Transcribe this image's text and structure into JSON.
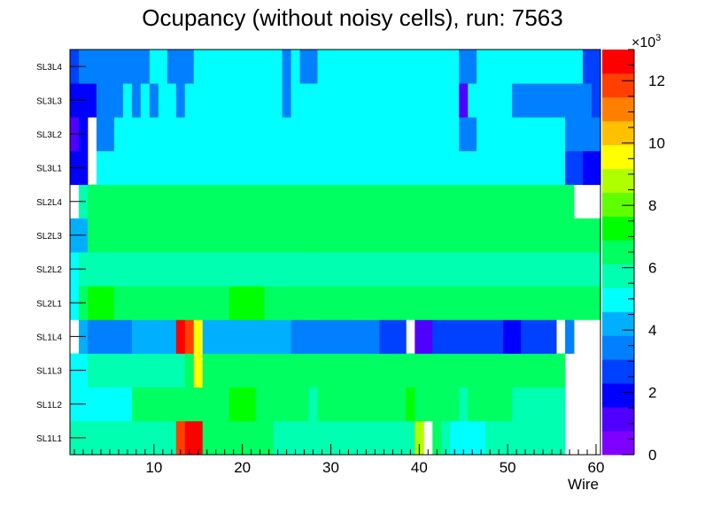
{
  "chart_data": {
    "type": "heatmap",
    "title": "Ocupancy (without noisy cells), run: 7563",
    "xlabel": "Wire",
    "ylabel": "",
    "xlim": [
      0.5,
      60.5
    ],
    "x_ticks": [
      10,
      20,
      30,
      40,
      50,
      60
    ],
    "rows": [
      "SL1L1",
      "SL1L2",
      "SL1L3",
      "SL1L4",
      "SL2L1",
      "SL2L2",
      "SL2L3",
      "SL2L4",
      "SL3L1",
      "SL3L2",
      "SL3L3",
      "SL3L4"
    ],
    "color_scale": {
      "min": 0,
      "max": 13000,
      "exponent_label": "×10",
      "exponent_power": "3",
      "ticks": [
        0,
        2,
        4,
        6,
        8,
        10,
        12
      ],
      "stops": [
        "#7f00ff",
        "#5000ff",
        "#0000ff",
        "#0040ff",
        "#0080ff",
        "#00b0ff",
        "#00ffff",
        "#00ffb0",
        "#00ff60",
        "#00ff00",
        "#60ff00",
        "#b0ff00",
        "#ffff00",
        "#ffc000",
        "#ff8000",
        "#ff4000",
        "#ff0000"
      ]
    },
    "values": [
      [
        5.8,
        5.8,
        6.0,
        6.0,
        6.0,
        6.0,
        6.0,
        6.0,
        6.0,
        6.0,
        6.0,
        6.0,
        11.5,
        13.0,
        12.5,
        6.5,
        6.5,
        6.5,
        6.5,
        6.5,
        6.5,
        6.5,
        6.5,
        5.5,
        5.5,
        5.5,
        5.5,
        5.5,
        6.0,
        6.0,
        6.0,
        5.5,
        5.5,
        6.0,
        6.0,
        6.0,
        6.0,
        6.0,
        6.0,
        8.5,
        null,
        6.5,
        5.8,
        4.8,
        5.2,
        5.2,
        5.2,
        6.0,
        6.0,
        6.0,
        6.0,
        6.0,
        6.0,
        5.5,
        5.5,
        5.5,
        null,
        null,
        null,
        null
      ],
      [
        5.2,
        5.2,
        5.2,
        5.2,
        5.2,
        5.2,
        5.2,
        6.2,
        6.2,
        6.2,
        6.2,
        6.2,
        6.2,
        6.8,
        6.8,
        6.2,
        6.2,
        6.2,
        7.0,
        7.0,
        7.0,
        6.2,
        6.2,
        6.2,
        6.2,
        6.2,
        6.2,
        5.8,
        6.2,
        6.2,
        6.2,
        6.2,
        6.2,
        6.2,
        6.2,
        6.2,
        6.2,
        6.2,
        7.5,
        6.2,
        6.2,
        6.2,
        6.2,
        6.2,
        5.8,
        6.2,
        6.2,
        6.2,
        6.8,
        6.8,
        5.8,
        5.8,
        5.8,
        5.8,
        5.8,
        5.8,
        null,
        null,
        null,
        null
      ],
      [
        5.2,
        5.2,
        5.6,
        5.6,
        5.6,
        5.6,
        5.6,
        5.6,
        5.6,
        5.6,
        5.6,
        5.6,
        5.6,
        6.4,
        9.5,
        6.4,
        6.4,
        6.4,
        6.4,
        6.4,
        6.4,
        6.4,
        6.4,
        6.4,
        6.4,
        6.4,
        6.4,
        6.4,
        6.4,
        6.4,
        6.8,
        6.8,
        6.8,
        6.8,
        6.8,
        6.8,
        6.4,
        6.4,
        6.4,
        6.4,
        6.4,
        6.4,
        6.4,
        6.4,
        6.4,
        6.4,
        6.4,
        6.4,
        6.4,
        6.8,
        6.8,
        6.4,
        6.4,
        6.4,
        6.4,
        6.4,
        null,
        null,
        null,
        null
      ],
      [
        null,
        4.5,
        3.8,
        3.8,
        3.8,
        3.8,
        3.8,
        4.5,
        4.5,
        4.5,
        4.5,
        4.5,
        13.0,
        12.0,
        9.8,
        4.5,
        4.5,
        4.5,
        4.5,
        4.5,
        4.5,
        4.5,
        4.5,
        4.0,
        4.5,
        3.8,
        3.8,
        3.8,
        3.8,
        3.8,
        3.8,
        3.8,
        3.8,
        3.8,
        3.8,
        3.0,
        3.0,
        3.0,
        null,
        0.8,
        0.8,
        3.0,
        3.0,
        3.0,
        3.0,
        3.0,
        3.0,
        3.0,
        3.0,
        2.0,
        2.0,
        3.0,
        3.0,
        3.0,
        3.0,
        null,
        3.8,
        null,
        null,
        null
      ],
      [
        4.8,
        6.2,
        7.5,
        7.5,
        7.5,
        6.8,
        6.8,
        6.8,
        6.8,
        6.8,
        6.8,
        6.8,
        6.8,
        6.8,
        6.8,
        6.8,
        6.8,
        6.8,
        7.5,
        7.5,
        7.5,
        7.5,
        6.8,
        6.8,
        6.8,
        6.8,
        6.8,
        6.8,
        6.8,
        6.8,
        6.8,
        6.8,
        6.8,
        6.8,
        6.8,
        6.8,
        6.8,
        6.8,
        6.8,
        6.8,
        6.8,
        6.8,
        6.8,
        6.8,
        6.8,
        6.8,
        6.8,
        6.8,
        6.8,
        6.8,
        6.8,
        6.8,
        6.8,
        6.8,
        6.8,
        6.8,
        6.8,
        6.8,
        6.8,
        6.8
      ],
      [
        4.6,
        5.8,
        5.8,
        5.8,
        5.8,
        5.8,
        5.8,
        5.8,
        5.8,
        5.8,
        5.8,
        5.8,
        5.8,
        5.8,
        5.8,
        5.8,
        5.8,
        5.8,
        5.8,
        5.8,
        5.8,
        5.8,
        5.8,
        5.8,
        5.8,
        5.8,
        5.8,
        5.8,
        5.8,
        5.8,
        5.8,
        5.8,
        5.8,
        5.8,
        5.8,
        5.8,
        5.8,
        5.8,
        5.8,
        5.8,
        5.8,
        5.8,
        5.8,
        5.8,
        5.8,
        5.8,
        5.8,
        5.8,
        5.8,
        5.8,
        5.8,
        5.8,
        5.8,
        5.8,
        5.8,
        5.8,
        5.8,
        5.8,
        5.8,
        5.8
      ],
      [
        4.0,
        4.0,
        6.4,
        6.4,
        6.4,
        6.4,
        6.4,
        6.4,
        6.4,
        6.4,
        6.4,
        6.4,
        6.4,
        6.4,
        6.4,
        6.4,
        6.4,
        6.4,
        6.4,
        6.4,
        6.4,
        6.4,
        6.4,
        6.4,
        6.4,
        6.4,
        6.4,
        6.4,
        6.4,
        6.4,
        6.4,
        6.4,
        6.4,
        6.4,
        6.4,
        6.4,
        6.4,
        6.4,
        6.4,
        6.4,
        6.4,
        6.4,
        6.4,
        6.4,
        6.4,
        6.4,
        6.4,
        6.4,
        6.4,
        6.4,
        6.4,
        6.4,
        6.4,
        6.4,
        6.4,
        6.4,
        6.4,
        6.4,
        6.4,
        6.4
      ],
      [
        null,
        5.8,
        6.5,
        6.5,
        6.5,
        6.5,
        6.5,
        6.5,
        6.5,
        6.5,
        6.5,
        6.5,
        6.5,
        6.5,
        6.5,
        6.5,
        6.5,
        6.5,
        6.5,
        6.5,
        6.5,
        6.5,
        6.5,
        6.5,
        6.5,
        6.5,
        6.5,
        6.5,
        6.5,
        6.5,
        6.5,
        6.5,
        6.5,
        6.5,
        6.5,
        6.5,
        6.5,
        6.5,
        6.5,
        6.5,
        6.5,
        6.5,
        6.5,
        6.5,
        6.5,
        6.5,
        6.5,
        6.5,
        6.5,
        6.5,
        6.5,
        6.5,
        6.5,
        6.5,
        6.5,
        6.5,
        6.5,
        null,
        null,
        null
      ],
      [
        1.8,
        1.8,
        null,
        4.7,
        4.7,
        4.7,
        4.7,
        4.7,
        4.7,
        4.7,
        4.7,
        4.7,
        4.7,
        4.7,
        4.7,
        4.7,
        4.7,
        4.7,
        5.2,
        5.2,
        5.2,
        4.7,
        4.7,
        4.7,
        4.7,
        4.7,
        4.7,
        4.7,
        4.7,
        5.2,
        4.7,
        4.7,
        4.7,
        4.7,
        4.7,
        4.7,
        4.7,
        4.7,
        4.7,
        4.7,
        4.7,
        4.7,
        4.7,
        4.7,
        4.7,
        4.7,
        4.7,
        4.7,
        4.7,
        4.7,
        4.7,
        4.7,
        4.7,
        4.7,
        4.7,
        4.7,
        3.0,
        3.0,
        2.0,
        2.0
      ],
      [
        1.2,
        2.0,
        null,
        3.7,
        3.7,
        4.7,
        4.7,
        4.7,
        4.7,
        4.7,
        4.7,
        4.7,
        4.7,
        4.7,
        4.7,
        4.7,
        4.7,
        4.7,
        4.7,
        4.7,
        4.7,
        4.7,
        4.7,
        4.7,
        4.7,
        4.7,
        4.7,
        4.7,
        4.7,
        4.7,
        4.7,
        4.7,
        4.7,
        4.7,
        4.7,
        4.7,
        4.7,
        4.7,
        4.7,
        4.7,
        4.7,
        4.7,
        4.7,
        4.7,
        3.7,
        3.7,
        4.7,
        4.7,
        4.7,
        4.7,
        4.7,
        4.7,
        4.7,
        4.7,
        4.7,
        4.7,
        3.7,
        3.7,
        3.7,
        3.7
      ],
      [
        1.8,
        1.8,
        1.8,
        3.7,
        3.7,
        3.7,
        4.7,
        3.7,
        4.7,
        3.7,
        4.7,
        4.7,
        3.7,
        4.7,
        4.7,
        4.7,
        4.7,
        4.7,
        4.7,
        4.7,
        4.7,
        4.7,
        4.7,
        4.7,
        3.7,
        4.7,
        4.7,
        4.7,
        4.7,
        4.7,
        4.7,
        4.7,
        4.7,
        4.7,
        4.7,
        4.7,
        4.7,
        4.7,
        4.7,
        4.7,
        4.7,
        4.7,
        4.7,
        4.7,
        0.8,
        4.7,
        4.7,
        4.7,
        4.7,
        4.7,
        3.7,
        3.7,
        3.7,
        3.7,
        3.7,
        3.7,
        3.7,
        3.7,
        3.7,
        2.5
      ],
      [
        2.3,
        3.7,
        3.7,
        3.7,
        3.7,
        3.7,
        3.7,
        3.7,
        3.7,
        4.7,
        4.7,
        3.7,
        3.7,
        3.7,
        4.7,
        4.7,
        4.7,
        4.7,
        4.7,
        4.7,
        4.7,
        4.7,
        4.7,
        4.7,
        3.7,
        4.7,
        3.7,
        3.7,
        4.7,
        4.7,
        4.7,
        4.7,
        4.7,
        4.7,
        4.7,
        4.7,
        4.7,
        4.7,
        4.7,
        4.7,
        4.7,
        4.7,
        4.7,
        4.7,
        3.7,
        3.7,
        4.7,
        4.7,
        4.7,
        4.7,
        4.7,
        4.7,
        4.7,
        4.7,
        4.7,
        4.7,
        4.7,
        4.7,
        2.5,
        2.5
      ]
    ]
  }
}
